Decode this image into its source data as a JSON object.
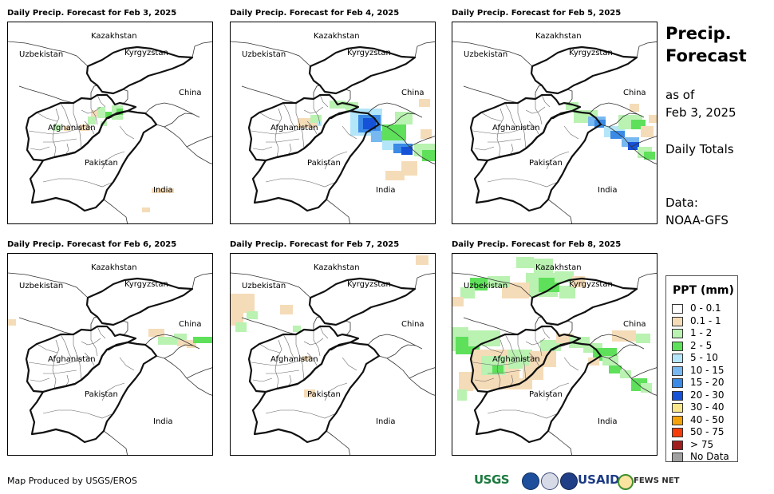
{
  "side": {
    "title": "Precip. Forecast",
    "as_of_label": "as of",
    "as_of_date": "Feb 3, 2025",
    "totals": "Daily Totals",
    "data_label": "Data:",
    "data_source": "NOAA-GFS"
  },
  "panels": [
    {
      "title": "Daily Precip. Forecast for Feb 3, 2025"
    },
    {
      "title": "Daily Precip. Forecast for Feb 4, 2025"
    },
    {
      "title": "Daily Precip. Forecast for Feb 5, 2025"
    },
    {
      "title": "Daily Precip. Forecast for Feb 6, 2025"
    },
    {
      "title": "Daily Precip. Forecast for Feb 7, 2025"
    },
    {
      "title": "Daily Precip. Forecast for Feb 8, 2025"
    }
  ],
  "map_labels": {
    "kazakhstan": "Kazakhstan",
    "uzbekistan": "Uzbekistan",
    "kyrgyzstan": "Kyrgyzstan",
    "china": "China",
    "afghanistan": "Afghanistan",
    "pakistan": "Pakistan",
    "india": "India"
  },
  "legend": {
    "title": "PPT (mm)",
    "items": [
      {
        "label": "0 - 0.1",
        "color": "#ffffff"
      },
      {
        "label": "0.1 - 1",
        "color": "#f5dcb8"
      },
      {
        "label": "1 - 2",
        "color": "#b9f2b1"
      },
      {
        "label": "2 - 5",
        "color": "#5fe05b"
      },
      {
        "label": "5 - 10",
        "color": "#b4e6fa"
      },
      {
        "label": "10 - 15",
        "color": "#78b8f0"
      },
      {
        "label": "15 - 20",
        "color": "#3a8ae6"
      },
      {
        "label": "20 - 30",
        "color": "#1652d8"
      },
      {
        "label": "30 - 40",
        "color": "#fae78c"
      },
      {
        "label": "40 - 50",
        "color": "#f5a20a"
      },
      {
        "label": "50 - 75",
        "color": "#f53c0a"
      },
      {
        "label": "> 75",
        "color": "#a01e1e"
      },
      {
        "label": "No Data",
        "color": "#a0a0a0"
      }
    ]
  },
  "footer": {
    "credit": "Map Produced by USGS/EROS",
    "usgs": "USGS",
    "usaid": "USAID",
    "fews": "FEWS NET"
  }
}
